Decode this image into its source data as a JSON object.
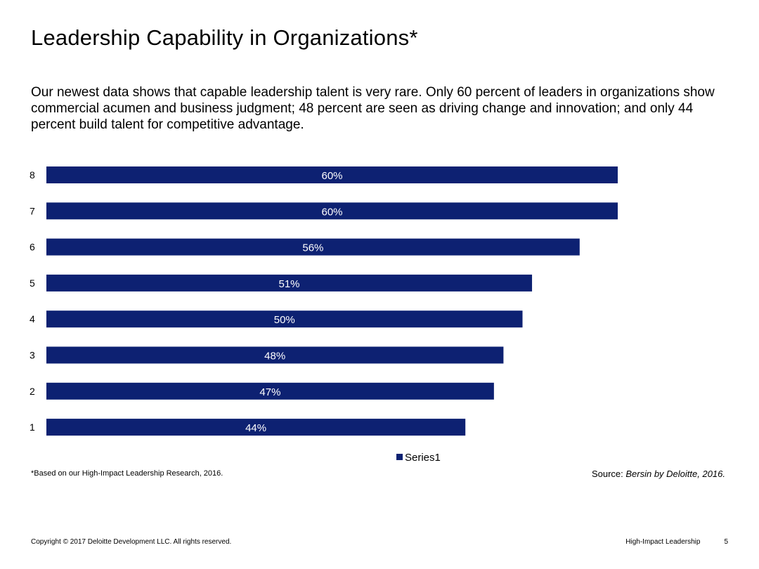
{
  "title": "Leadership Capability in Organizations*",
  "intro": "Our newest data shows that capable leadership talent is very rare. Only 60 percent of leaders in organizations show commercial acumen and business judgment; 48 percent are seen as driving change and innovation; and only 44 percent build talent for competitive advantage.",
  "chart_data": {
    "type": "bar",
    "orientation": "horizontal",
    "categories": [
      "1",
      "2",
      "3",
      "4",
      "5",
      "6",
      "7",
      "8"
    ],
    "series": [
      {
        "name": "Series1",
        "values": [
          44,
          47,
          48,
          50,
          51,
          56,
          60,
          60
        ]
      }
    ],
    "data_labels": [
      "44%",
      "47%",
      "48%",
      "50%",
      "51%",
      "56%",
      "60%",
      "60%"
    ],
    "value_unit": "%",
    "xlim": [
      0,
      60
    ],
    "grid": false,
    "legend_position": "bottom",
    "bar_color": "#0d2172",
    "label_color": "#ffffff"
  },
  "footnote": "*Based on our High-Impact Leadership Research, 2016.",
  "source": {
    "label": "Source: ",
    "text": "Bersin by Deloitte, 2016."
  },
  "footer": {
    "copyright": "Copyright © 2017 Deloitte Development LLC. All rights reserved.",
    "deck_name": "High-Impact Leadership",
    "page_number": "5"
  }
}
